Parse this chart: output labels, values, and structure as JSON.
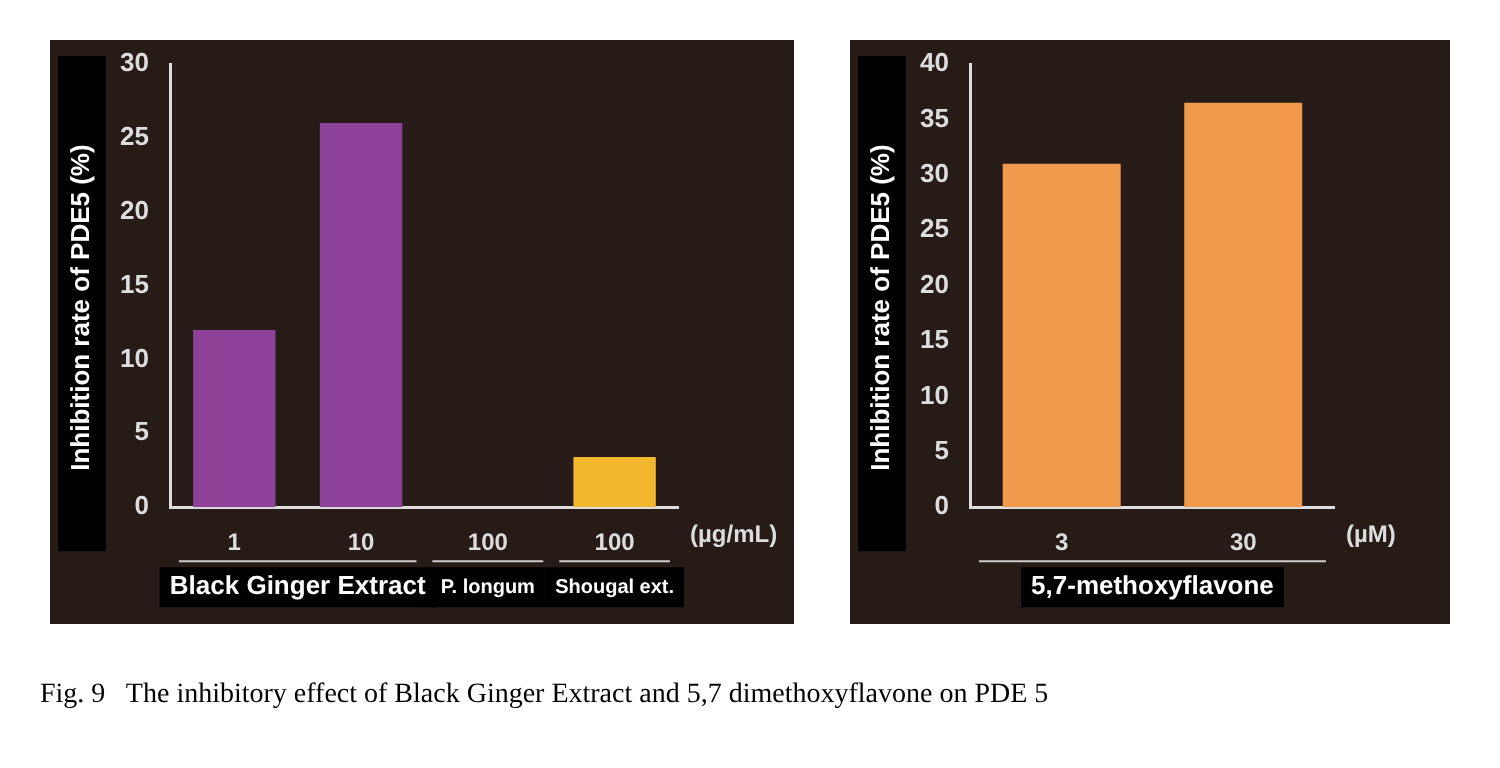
{
  "chart_data": [
    {
      "type": "bar",
      "categories": [
        "1",
        "10",
        "100",
        "100"
      ],
      "values": [
        12,
        26,
        0,
        3.4
      ],
      "colors": [
        "#8e4199",
        "#8e4199",
        "#8e4199",
        "#f3b72f"
      ],
      "ylabel": "Inhibition rate of PDE5 (%)",
      "xlabel": "(µg/mL)",
      "ylim": [
        0,
        30
      ],
      "yticks": [
        0,
        5,
        10,
        15,
        20,
        25,
        30
      ],
      "annotations": [
        "Black Ginger Extract",
        "P. longum",
        "Shougal ext."
      ]
    },
    {
      "type": "bar",
      "categories": [
        "3",
        "30"
      ],
      "values": [
        31,
        36.5
      ],
      "color": "#f0984c",
      "ylabel": "Inhibition rate of PDE5 (%)",
      "xlabel": "(µM)",
      "ylim": [
        0,
        40
      ],
      "yticks": [
        0,
        5,
        10,
        15,
        20,
        25,
        30,
        35,
        40
      ],
      "annotations": [
        "5,7-methoxyflavone",
        "Fig. 9   The inhibitory effect of Black Ginger Extract and 5,7 dimethoxyflavone on PDE 5"
      ]
    }
  ]
}
